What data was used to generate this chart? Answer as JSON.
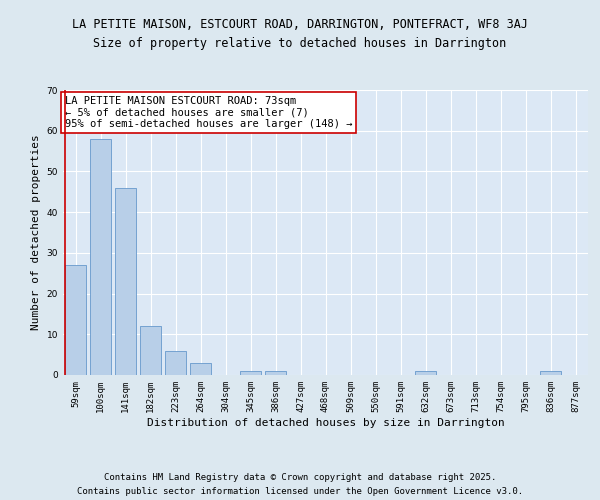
{
  "title_line1": "LA PETITE MAISON, ESTCOURT ROAD, DARRINGTON, PONTEFRACT, WF8 3AJ",
  "title_line2": "Size of property relative to detached houses in Darrington",
  "xlabel": "Distribution of detached houses by size in Darrington",
  "ylabel": "Number of detached properties",
  "categories": [
    "59sqm",
    "100sqm",
    "141sqm",
    "182sqm",
    "223sqm",
    "264sqm",
    "304sqm",
    "345sqm",
    "386sqm",
    "427sqm",
    "468sqm",
    "509sqm",
    "550sqm",
    "591sqm",
    "632sqm",
    "673sqm",
    "713sqm",
    "754sqm",
    "795sqm",
    "836sqm",
    "877sqm"
  ],
  "values": [
    27,
    58,
    46,
    12,
    6,
    3,
    0,
    1,
    1,
    0,
    0,
    0,
    0,
    0,
    1,
    0,
    0,
    0,
    0,
    1,
    0
  ],
  "bar_color": "#b8cfe8",
  "bar_edge_color": "#6699cc",
  "highlight_line_color": "#cc0000",
  "annotation_text": "LA PETITE MAISON ESTCOURT ROAD: 73sqm\n← 5% of detached houses are smaller (7)\n95% of semi-detached houses are larger (148) →",
  "annotation_box_color": "#ffffff",
  "annotation_box_edge_color": "#cc0000",
  "ylim": [
    0,
    70
  ],
  "yticks": [
    0,
    10,
    20,
    30,
    40,
    50,
    60,
    70
  ],
  "background_color": "#dce8f0",
  "plot_bg_color": "#dce8f5",
  "grid_color": "#ffffff",
  "footer_line1": "Contains HM Land Registry data © Crown copyright and database right 2025.",
  "footer_line2": "Contains public sector information licensed under the Open Government Licence v3.0.",
  "title_fontsize": 8.5,
  "subtitle_fontsize": 8.5,
  "axis_label_fontsize": 8,
  "tick_fontsize": 6.5,
  "annotation_fontsize": 7.5,
  "footer_fontsize": 6.5
}
